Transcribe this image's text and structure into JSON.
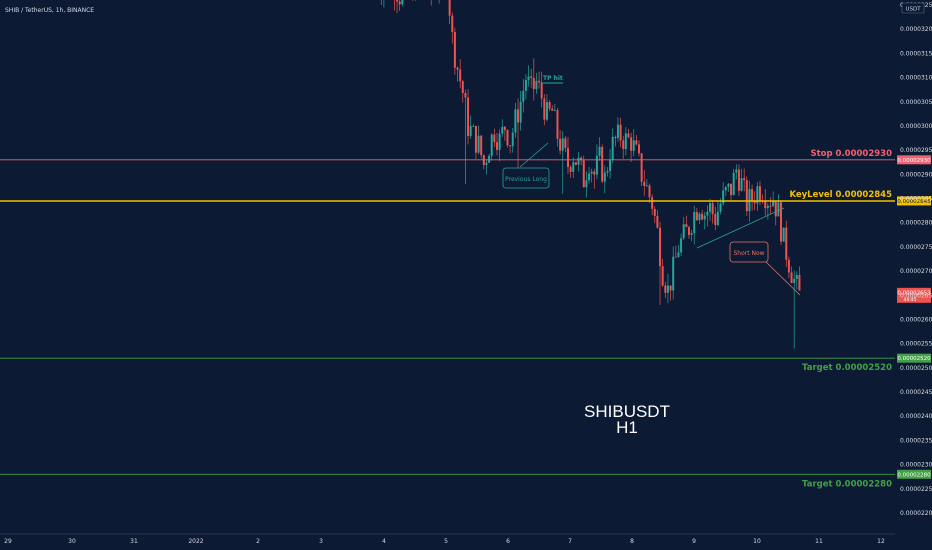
{
  "header": {
    "title": "SHIB / TetherUS, 1h, BINANCE"
  },
  "currency_badge": "USDT",
  "watermark": {
    "line1": "SHIBUSDT",
    "line2": "H1"
  },
  "colors": {
    "background": "#0c1a33",
    "up": "#26a69a",
    "down": "#ef5350",
    "stop": "#f06272",
    "key": "#f5c000",
    "target": "#43a047",
    "callout": "#26a69a",
    "callout_short": "#e0766a"
  },
  "chart_data": {
    "type": "candlestick",
    "title": "",
    "xlabel": "",
    "ylabel": "",
    "ylim": [
      2.16e-05,
      3.29e-05
    ],
    "y_ticks": [
      "0.00003250",
      "0.00003200",
      "0.00003150",
      "0.00003100",
      "0.00003050",
      "0.00003000",
      "0.00002950",
      "0.00002900",
      "0.00002850",
      "0.00002800",
      "0.00002750",
      "0.00002700",
      "0.00002650",
      "0.00002600",
      "0.00002550",
      "0.00002500",
      "0.00002450",
      "0.00002400",
      "0.00002350",
      "0.00002300",
      "0.00002250",
      "0.00002200"
    ],
    "x_ticks": [
      "29",
      "30",
      "31",
      "2022",
      "2",
      "3",
      "4",
      "5",
      "6",
      "7",
      "8",
      "9",
      "10",
      "11",
      "12"
    ],
    "price_path": [
      [
        0,
        3.31e-05
      ],
      [
        3,
        3.28e-05
      ],
      [
        6,
        3.3e-05
      ],
      [
        9,
        3.27e-05
      ],
      [
        12,
        3.31e-05
      ],
      [
        15,
        3.28e-05
      ],
      [
        18,
        3.3e-05
      ],
      [
        21,
        3.27e-05
      ],
      [
        24,
        3.3e-05
      ],
      [
        27,
        3.31e-05
      ],
      [
        29,
        3.18e-05
      ],
      [
        31,
        3.12e-05
      ],
      [
        33,
        3.07e-05
      ],
      [
        35,
        3e-05
      ],
      [
        37,
        2.98e-05
      ],
      [
        39,
        2.96e-05
      ],
      [
        41,
        2.92e-05
      ],
      [
        43,
        2.96e-05
      ],
      [
        45,
        2.99e-05
      ],
      [
        47,
        2.97e-05
      ],
      [
        49,
        3e-05
      ],
      [
        51,
        2.97e-05
      ],
      [
        53,
        3.01e-05
      ],
      [
        55,
        3.05e-05
      ],
      [
        57,
        3.1e-05
      ],
      [
        59,
        3.07e-05
      ],
      [
        61,
        3.09e-05
      ],
      [
        63,
        3.06e-05
      ],
      [
        65,
        3.02e-05
      ],
      [
        67,
        3.03e-05
      ],
      [
        69,
        2.98e-05
      ],
      [
        71,
        2.95e-05
      ],
      [
        73,
        2.92e-05
      ],
      [
        75,
        2.94e-05
      ],
      [
        77,
        2.92e-05
      ],
      [
        79,
        2.89e-05
      ],
      [
        81,
        2.93e-05
      ],
      [
        83,
        2.9e-05
      ],
      [
        85,
        2.93e-05
      ],
      [
        87,
        2.89e-05
      ],
      [
        89,
        2.95e-05
      ],
      [
        91,
        2.97e-05
      ],
      [
        93,
        2.98e-05
      ],
      [
        95,
        2.97e-05
      ],
      [
        97,
        2.97e-05
      ],
      [
        99,
        2.94e-05
      ],
      [
        101,
        2.9e-05
      ],
      [
        103,
        2.87e-05
      ],
      [
        105,
        2.84e-05
      ],
      [
        107,
        2.78e-05
      ],
      [
        109,
        2.7e-05
      ],
      [
        111,
        2.66e-05
      ],
      [
        113,
        2.7e-05
      ],
      [
        115,
        2.75e-05
      ],
      [
        117,
        2.77e-05
      ],
      [
        119,
        2.79e-05
      ],
      [
        121,
        2.82e-05
      ],
      [
        123,
        2.84e-05
      ],
      [
        125,
        2.82e-05
      ],
      [
        127,
        2.83e-05
      ],
      [
        129,
        2.81e-05
      ],
      [
        131,
        2.84e-05
      ],
      [
        133,
        2.86e-05
      ],
      [
        135,
        2.87e-05
      ],
      [
        137,
        2.91e-05
      ],
      [
        139,
        2.88e-05
      ],
      [
        141,
        2.84e-05
      ],
      [
        143,
        2.85e-05
      ],
      [
        145,
        2.87e-05
      ],
      [
        147,
        2.87e-05
      ],
      [
        149,
        2.85e-05
      ],
      [
        151,
        2.85e-05
      ],
      [
        153,
        2.82e-05
      ],
      [
        155,
        2.76e-05
      ],
      [
        157,
        2.72e-05
      ],
      [
        159,
        2.68e-05
      ],
      [
        161,
        2.65e-05
      ]
    ],
    "price_path_unit": "hours after first candle shown",
    "wick_spikes": [
      {
        "x": 34,
        "low": 2.88e-05
      },
      {
        "x": 54,
        "low": 2.9e-05
      },
      {
        "x": 60,
        "high": 3.14e-05
      },
      {
        "x": 71,
        "low": 2.86e-05
      },
      {
        "x": 83,
        "low": 2.87e-05
      },
      {
        "x": 108,
        "low": 2.63e-05
      },
      {
        "x": 138,
        "high": 2.92e-05
      },
      {
        "x": 159,
        "low": 2.54e-05
      }
    ],
    "levels": [
      {
        "label": "Stop 0.00002930",
        "value": 2.93e-05,
        "color_key": "stop",
        "tag": "0.00002930"
      },
      {
        "label": "KeyLevel 0.00002845",
        "value": 2.845e-05,
        "color_key": "key",
        "tag": "0.00002845"
      },
      {
        "label": "Target 0.00002520",
        "value": 2.52e-05,
        "color_key": "target",
        "tag": "0.00002520"
      },
      {
        "label": "Target 0.00002280",
        "value": 2.28e-05,
        "color_key": "target",
        "tag": "0.00002280"
      }
    ],
    "current_price": {
      "value": 2.653e-05,
      "tag": "0.00002653",
      "sub": "44:45"
    },
    "annotations": {
      "tp_hit": "TP hit",
      "previous_long": "Previous Long",
      "short_now": "Short Now"
    }
  }
}
